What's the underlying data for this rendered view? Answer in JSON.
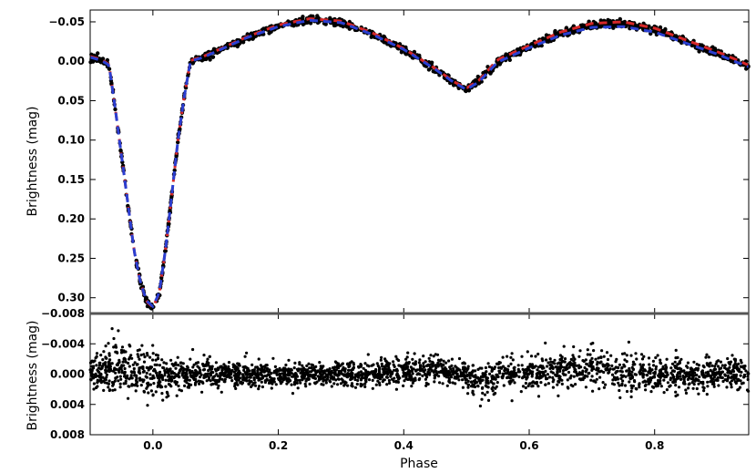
{
  "chart_data": [
    {
      "type": "line",
      "panel": "light-curve",
      "ylabel": "Brightness (mag)",
      "xlim": [
        -0.1,
        0.95
      ],
      "ylim": [
        -0.065,
        0.32
      ],
      "y_inverted": true,
      "yticks": [
        -0.05,
        0.0,
        0.05,
        0.1,
        0.15,
        0.2,
        0.25,
        0.3
      ],
      "ytick_labels": [
        "−0.05",
        "0.00",
        "0.05",
        "0.10",
        "0.15",
        "0.20",
        "0.25",
        "0.30"
      ],
      "colors": {
        "observed": "#000000",
        "model_1": "#d62728",
        "model_2": "#2a3fd1"
      },
      "series": [
        {
          "style": "points",
          "color": "#000000",
          "x": [
            -0.1,
            -0.09,
            -0.08,
            -0.07,
            -0.06,
            -0.05,
            -0.04,
            -0.03,
            -0.02,
            -0.01,
            0.0,
            0.01,
            0.02,
            0.03,
            0.04,
            0.05,
            0.06,
            0.08,
            0.1,
            0.15,
            0.2,
            0.25,
            0.3,
            0.35,
            0.4,
            0.45,
            0.48,
            0.5,
            0.52,
            0.55,
            0.6,
            0.65,
            0.7,
            0.75,
            0.8,
            0.85,
            0.9,
            0.93,
            0.95
          ],
          "y": [
            -0.005,
            -0.003,
            0.0,
            0.005,
            0.06,
            0.12,
            0.18,
            0.24,
            0.28,
            0.305,
            0.312,
            0.295,
            0.24,
            0.17,
            0.1,
            0.045,
            0.0,
            -0.005,
            -0.012,
            -0.03,
            -0.045,
            -0.053,
            -0.05,
            -0.035,
            -0.015,
            0.01,
            0.027,
            0.035,
            0.025,
            0.0,
            -0.018,
            -0.035,
            -0.046,
            -0.048,
            -0.04,
            -0.025,
            -0.01,
            0.0,
            0.006
          ]
        },
        {
          "style": "dashed",
          "color": "#d62728",
          "x": [
            -0.1,
            -0.09,
            -0.08,
            -0.07,
            -0.06,
            -0.05,
            -0.04,
            -0.03,
            -0.02,
            -0.01,
            0.0,
            0.01,
            0.02,
            0.03,
            0.04,
            0.05,
            0.06,
            0.08,
            0.1,
            0.15,
            0.2,
            0.25,
            0.3,
            0.35,
            0.4,
            0.45,
            0.48,
            0.5,
            0.52,
            0.55,
            0.6,
            0.65,
            0.7,
            0.75,
            0.8,
            0.85,
            0.9,
            0.93,
            0.95
          ],
          "y": [
            -0.006,
            -0.004,
            -0.001,
            0.004,
            0.06,
            0.12,
            0.18,
            0.24,
            0.28,
            0.305,
            0.312,
            0.295,
            0.24,
            0.17,
            0.1,
            0.045,
            -0.001,
            -0.006,
            -0.013,
            -0.031,
            -0.046,
            -0.054,
            -0.051,
            -0.036,
            -0.016,
            0.009,
            0.026,
            0.034,
            0.024,
            -0.002,
            -0.02,
            -0.037,
            -0.048,
            -0.05,
            -0.042,
            -0.027,
            -0.012,
            -0.002,
            0.005
          ]
        },
        {
          "style": "dashed",
          "color": "#2a3fd1",
          "x": [
            -0.1,
            -0.09,
            -0.08,
            -0.07,
            -0.06,
            -0.05,
            -0.04,
            -0.03,
            -0.02,
            -0.01,
            0.0,
            0.01,
            0.02,
            0.03,
            0.04,
            0.05,
            0.06,
            0.08,
            0.1,
            0.15,
            0.2,
            0.25,
            0.3,
            0.35,
            0.4,
            0.45,
            0.48,
            0.5,
            0.52,
            0.55,
            0.6,
            0.65,
            0.7,
            0.75,
            0.8,
            0.85,
            0.9,
            0.93,
            0.95
          ],
          "y": [
            -0.005,
            -0.003,
            0.0,
            0.005,
            0.06,
            0.12,
            0.18,
            0.24,
            0.28,
            0.304,
            0.311,
            0.294,
            0.24,
            0.17,
            0.1,
            0.045,
            0.0,
            -0.005,
            -0.012,
            -0.03,
            -0.044,
            -0.052,
            -0.049,
            -0.034,
            -0.015,
            0.01,
            0.027,
            0.036,
            0.026,
            0.001,
            -0.017,
            -0.033,
            -0.043,
            -0.044,
            -0.037,
            -0.023,
            -0.009,
            0.001,
            0.007
          ]
        }
      ]
    },
    {
      "type": "scatter",
      "panel": "residuals",
      "xlabel": "Phase",
      "ylabel": "Brightness (mag)",
      "xlim": [
        -0.1,
        0.95
      ],
      "ylim": [
        -0.008,
        0.008
      ],
      "y_inverted": true,
      "xticks": [
        0.0,
        0.2,
        0.4,
        0.6,
        0.8
      ],
      "xtick_labels": [
        "0.0",
        "0.2",
        "0.4",
        "0.6",
        "0.8"
      ],
      "yticks": [
        -0.008,
        -0.004,
        0.0,
        0.004,
        0.008
      ],
      "ytick_labels": [
        "−0.008",
        "−0.004",
        "0.000",
        "0.004",
        "0.008"
      ],
      "color": "#000000",
      "scatter_band": {
        "x": [
          -0.1,
          -0.05,
          0.0,
          0.02,
          0.05,
          0.1,
          0.2,
          0.3,
          0.4,
          0.45,
          0.5,
          0.53,
          0.55,
          0.6,
          0.65,
          0.7,
          0.75,
          0.8,
          0.85,
          0.9,
          0.95
        ],
        "center": [
          0.0,
          -0.001,
          0.0,
          0.0005,
          0.0,
          0.0,
          0.0,
          0.0,
          -0.0003,
          -0.0008,
          0.0,
          0.0012,
          0.0,
          0.0,
          -0.0005,
          -0.001,
          0.0,
          0.0,
          0.0002,
          0.0,
          -0.0003
        ],
        "spread": [
          0.0022,
          0.0032,
          0.0034,
          0.0028,
          0.002,
          0.0016,
          0.0014,
          0.0014,
          0.0016,
          0.0016,
          0.0014,
          0.0018,
          0.0016,
          0.0018,
          0.0024,
          0.0026,
          0.0026,
          0.0022,
          0.0018,
          0.0018,
          0.0022
        ]
      }
    }
  ]
}
